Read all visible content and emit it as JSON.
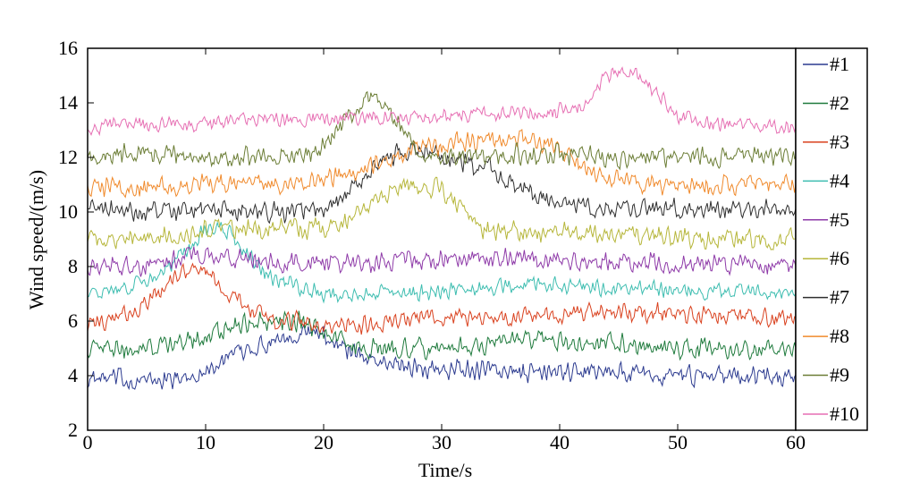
{
  "chart_data": {
    "type": "line",
    "title": "",
    "xlabel": "Time/s",
    "ylabel": "Wind speed/(m/s)",
    "xlim": [
      0,
      60
    ],
    "ylim": [
      2,
      16
    ],
    "xticks": [
      "0",
      "10",
      "20",
      "30",
      "40",
      "50",
      "60"
    ],
    "yticks": [
      "2",
      "4",
      "6",
      "8",
      "10",
      "12",
      "14",
      "16"
    ],
    "grid": false,
    "legend": "right",
    "x": [
      0,
      2,
      4,
      6,
      8,
      10,
      12,
      14,
      16,
      18,
      20,
      22,
      24,
      26,
      28,
      30,
      32,
      34,
      36,
      38,
      40,
      42,
      44,
      46,
      48,
      50,
      52,
      54,
      56,
      58,
      60
    ],
    "series": [
      {
        "name": "#1",
        "color": "#2b3a8f",
        "noise": 0.45,
        "values": [
          3.8,
          3.9,
          3.8,
          3.8,
          3.9,
          4.2,
          4.6,
          5.0,
          5.4,
          5.6,
          5.5,
          5.0,
          4.6,
          4.4,
          4.3,
          4.2,
          4.2,
          4.2,
          4.1,
          4.1,
          4.1,
          4.1,
          4.2,
          4.1,
          4.0,
          4.0,
          4.0,
          4.0,
          4.0,
          4.0,
          4.0
        ]
      },
      {
        "name": "#2",
        "color": "#1e7a3c",
        "noise": 0.45,
        "values": [
          5.0,
          5.0,
          5.0,
          5.1,
          5.2,
          5.4,
          5.8,
          6.0,
          6.1,
          6.0,
          5.6,
          5.2,
          5.0,
          5.0,
          5.0,
          5.0,
          5.1,
          5.2,
          5.2,
          5.3,
          5.3,
          5.2,
          5.2,
          5.1,
          5.1,
          5.0,
          5.0,
          5.0,
          5.0,
          5.0,
          5.0
        ]
      },
      {
        "name": "#3",
        "color": "#d9411e",
        "noise": 0.4,
        "values": [
          5.8,
          6.0,
          6.4,
          7.0,
          7.8,
          7.9,
          7.0,
          6.4,
          6.0,
          6.0,
          5.9,
          5.8,
          5.9,
          6.0,
          6.1,
          6.1,
          6.1,
          6.1,
          6.1,
          6.2,
          6.2,
          6.3,
          6.3,
          6.3,
          6.3,
          6.3,
          6.2,
          6.2,
          6.2,
          6.1,
          6.1
        ]
      },
      {
        "name": "#4",
        "color": "#3dbdb0",
        "noise": 0.35,
        "values": [
          7.0,
          7.1,
          7.3,
          7.7,
          8.4,
          9.4,
          9.3,
          8.2,
          7.5,
          7.2,
          7.0,
          7.0,
          7.0,
          7.0,
          7.0,
          7.1,
          7.2,
          7.2,
          7.3,
          7.3,
          7.3,
          7.3,
          7.2,
          7.2,
          7.2,
          7.1,
          7.1,
          7.1,
          7.1,
          7.0,
          7.0
        ]
      },
      {
        "name": "#5",
        "color": "#8e3aa8",
        "noise": 0.45,
        "values": [
          8.0,
          8.0,
          8.0,
          8.1,
          8.3,
          8.4,
          8.3,
          8.2,
          8.1,
          8.1,
          8.1,
          8.1,
          8.2,
          8.2,
          8.2,
          8.3,
          8.3,
          8.3,
          8.3,
          8.3,
          8.3,
          8.2,
          8.2,
          8.1,
          8.1,
          8.1,
          8.1,
          8.1,
          8.0,
          8.0,
          8.0
        ]
      },
      {
        "name": "#6",
        "color": "#b6b63a",
        "noise": 0.45,
        "values": [
          9.0,
          9.0,
          9.0,
          9.1,
          9.2,
          9.3,
          9.4,
          9.4,
          9.4,
          9.4,
          9.4,
          9.6,
          10.3,
          10.9,
          11.0,
          10.8,
          9.9,
          9.3,
          9.3,
          9.3,
          9.3,
          9.2,
          9.2,
          9.1,
          9.1,
          9.1,
          9.0,
          9.0,
          9.0,
          9.0,
          9.0
        ]
      },
      {
        "name": "#7",
        "color": "#2f2f2f",
        "noise": 0.45,
        "values": [
          10.2,
          10.1,
          10.0,
          10.0,
          10.0,
          10.1,
          10.1,
          10.0,
          10.0,
          10.0,
          10.0,
          10.6,
          11.5,
          12.1,
          12.3,
          12.1,
          11.8,
          11.6,
          11.1,
          10.6,
          10.3,
          10.2,
          10.1,
          10.1,
          10.1,
          10.1,
          10.1,
          10.1,
          10.1,
          10.1,
          10.1
        ]
      },
      {
        "name": "#8",
        "color": "#f08a2c",
        "noise": 0.45,
        "values": [
          11.0,
          11.0,
          10.9,
          10.9,
          10.9,
          11.0,
          11.0,
          11.0,
          11.0,
          11.1,
          11.2,
          11.4,
          11.7,
          12.0,
          12.3,
          12.5,
          12.6,
          12.7,
          12.7,
          12.6,
          12.3,
          11.6,
          11.2,
          11.0,
          11.0,
          11.0,
          11.0,
          11.0,
          11.0,
          11.0,
          11.0
        ]
      },
      {
        "name": "#9",
        "color": "#6b7d35",
        "noise": 0.45,
        "values": [
          12.0,
          12.1,
          12.1,
          12.1,
          12.1,
          12.0,
          12.0,
          12.0,
          12.0,
          12.1,
          12.4,
          13.3,
          14.4,
          13.5,
          12.3,
          12.0,
          12.0,
          12.0,
          12.1,
          12.1,
          12.1,
          12.1,
          12.0,
          12.0,
          12.0,
          12.0,
          12.0,
          12.0,
          12.0,
          12.0,
          12.0
        ]
      },
      {
        "name": "#10",
        "color": "#e66fb3",
        "noise": 0.35,
        "values": [
          13.0,
          13.2,
          13.2,
          13.2,
          13.2,
          13.2,
          13.3,
          13.4,
          13.4,
          13.4,
          13.4,
          13.5,
          13.5,
          13.5,
          13.5,
          13.5,
          13.6,
          13.6,
          13.6,
          13.6,
          13.7,
          14.0,
          15.0,
          15.2,
          14.5,
          13.5,
          13.3,
          13.2,
          13.2,
          13.1,
          13.1
        ]
      }
    ]
  }
}
